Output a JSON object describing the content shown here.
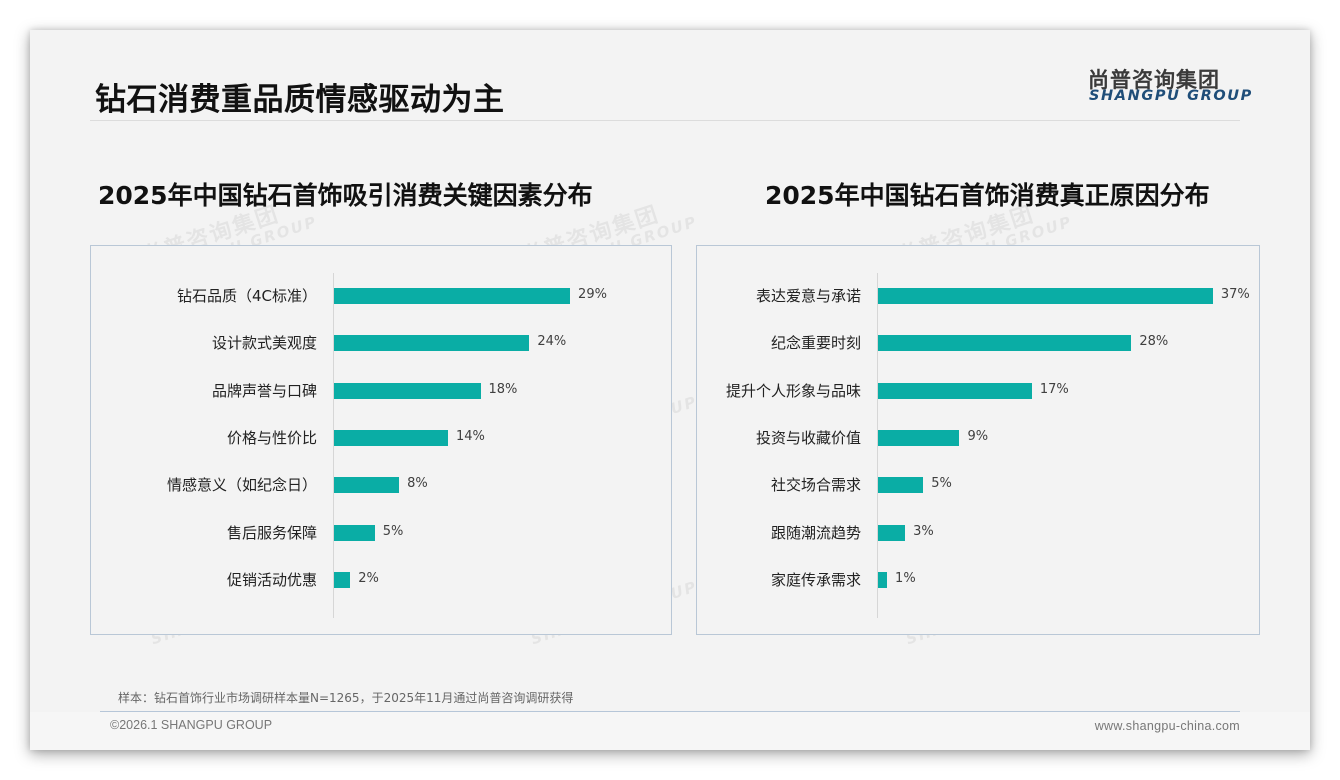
{
  "header": {
    "title": "钻石消费重品质情感驱动为主",
    "logo_cn": "尚普咨询集团",
    "logo_en": "SHANGPU GROUP"
  },
  "watermark": {
    "cn": "尚普咨询集团",
    "en": "SHANGPU GROUP"
  },
  "colors": {
    "bar": "#0aada5",
    "box_border": "#b9c7d6",
    "logo_en": "#1f4e79",
    "background": "#f3f3f3"
  },
  "chart_data": [
    {
      "type": "bar",
      "orientation": "horizontal",
      "title": "2025年中国钻石首饰吸引消费关键因素分布",
      "categories": [
        "钻石品质（4C标准）",
        "设计款式美观度",
        "品牌声誉与口碑",
        "价格与性价比",
        "情感意义（如纪念日）",
        "售后服务保障",
        "促销活动优惠"
      ],
      "values": [
        29,
        24,
        18,
        14,
        8,
        5,
        2
      ],
      "value_labels": [
        "29%",
        "24%",
        "18%",
        "14%",
        "8%",
        "5%",
        "2%"
      ],
      "unit": "%",
      "xlabel": "",
      "ylabel": "",
      "grid": false,
      "legend": "none"
    },
    {
      "type": "bar",
      "orientation": "horizontal",
      "title": "2025年中国钻石首饰消费真正原因分布",
      "categories": [
        "表达爱意与承诺",
        "纪念重要时刻",
        "提升个人形象与品味",
        "投资与收藏价值",
        "社交场合需求",
        "跟随潮流趋势",
        "家庭传承需求"
      ],
      "values": [
        37,
        28,
        17,
        9,
        5,
        3,
        1
      ],
      "value_labels": [
        "37%",
        "28%",
        "17%",
        "9%",
        "5%",
        "3%",
        "1%"
      ],
      "unit": "%",
      "xlabel": "",
      "ylabel": "",
      "grid": false,
      "legend": "none"
    }
  ],
  "footer": {
    "sample_note": "样本：钻石首饰行业市场调研样本量N=1265，于2025年11月通过尚普咨询调研获得",
    "copyright": "©2026.1 SHANGPU GROUP",
    "website": "www.shangpu-china.com"
  }
}
